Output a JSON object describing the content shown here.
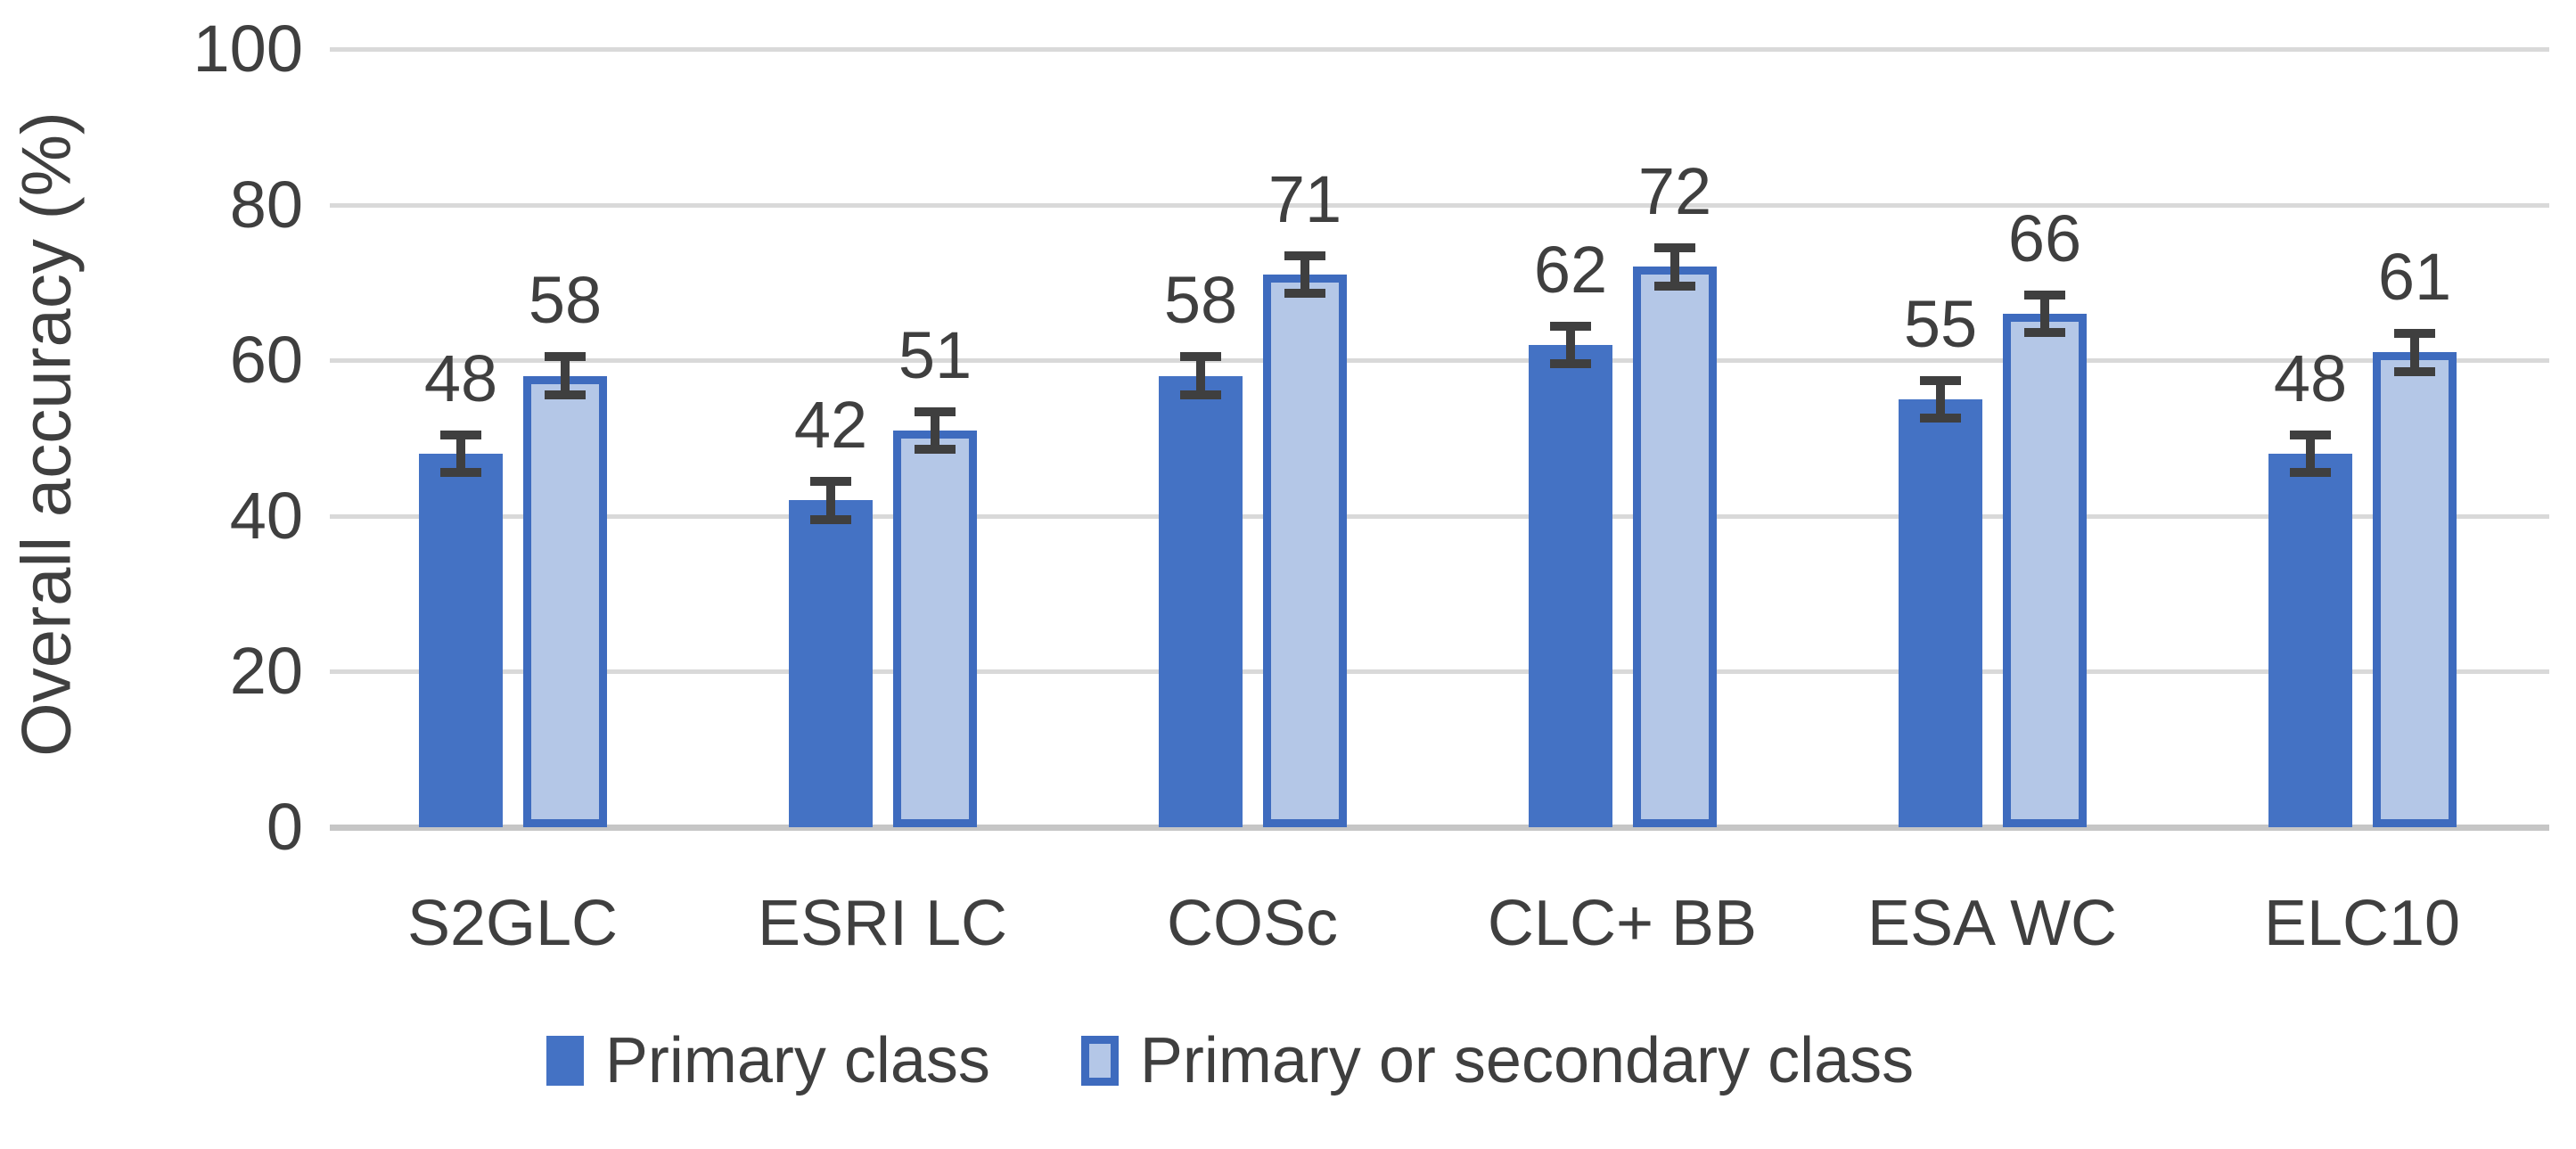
{
  "chart_data": {
    "type": "bar",
    "title": "",
    "categories": [
      "S2GLC",
      "ESRI LC",
      "COSc",
      "CLC+ BB",
      "ESA WC",
      "ELC10"
    ],
    "series": [
      {
        "name": "Primary class",
        "values": [
          48,
          42,
          58,
          62,
          55,
          48
        ],
        "color": "#4472c4"
      },
      {
        "name": "Primary or secondary class",
        "values": [
          58,
          51,
          71,
          72,
          66,
          61
        ],
        "color": "#b4c7e7",
        "border_color": "#3e6bbe"
      }
    ],
    "data_labels": [
      [
        48,
        42,
        58,
        62,
        55,
        48
      ],
      [
        58,
        51,
        71,
        72,
        66,
        61
      ]
    ],
    "error_bar_plus_minus": 3,
    "xlabel": "",
    "ylabel": "Overall accuracy (%)",
    "yticks": [
      0,
      20,
      40,
      60,
      80,
      100
    ],
    "ylim": [
      0,
      100
    ],
    "grid": true,
    "legend_position": "bottom",
    "colors": {
      "gridline": "#d9d9d9",
      "axis_line": "#c6c6c6",
      "error_bar": "#3f3f3f",
      "text": "#3f3f3f"
    }
  }
}
